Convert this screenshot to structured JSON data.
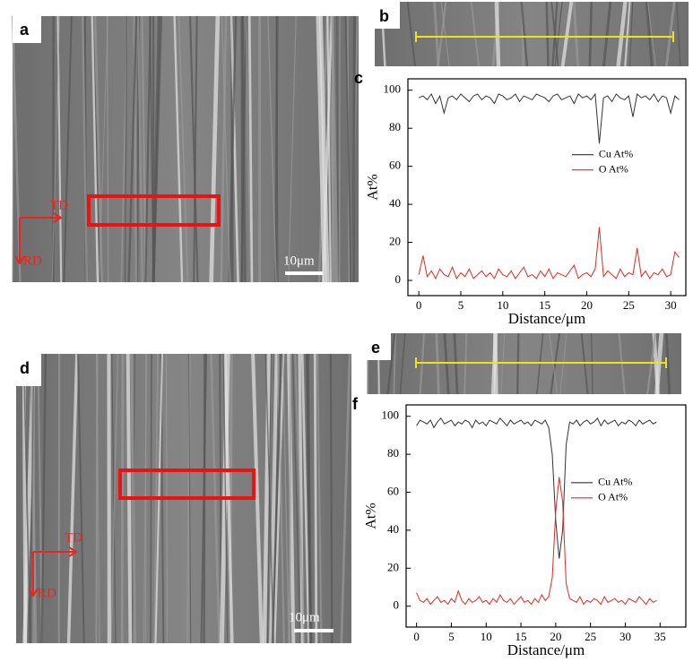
{
  "panels": {
    "a": {
      "label": "a",
      "td": "TD",
      "rd": "RD",
      "scale": "10μm"
    },
    "b": {
      "label": "b"
    },
    "d": {
      "label": "d",
      "td": "TD",
      "rd": "RD",
      "scale": "10μm"
    },
    "e": {
      "label": "e"
    }
  },
  "chart_data": [
    {
      "type": "line",
      "panel_label": "c",
      "xlabel": "Distance/μm",
      "ylabel": "At%",
      "legend": "center right",
      "xlim": [
        -1.3,
        31.8
      ],
      "ylim": [
        -8,
        106
      ],
      "xticks": [
        0,
        5,
        10,
        15,
        20,
        25,
        30
      ],
      "yticks": [
        0,
        20,
        40,
        60,
        80,
        100
      ],
      "x": [
        0,
        0.5,
        1,
        1.5,
        2,
        2.5,
        3,
        3.5,
        4,
        4.5,
        5,
        5.5,
        6,
        6.5,
        7,
        7.5,
        8,
        8.5,
        9,
        9.5,
        10,
        10.5,
        11,
        11.5,
        12,
        12.5,
        13,
        13.5,
        14,
        14.5,
        15,
        15.5,
        16,
        16.5,
        17,
        17.5,
        18,
        18.5,
        19,
        19.5,
        20,
        20.5,
        21,
        21.5,
        22,
        22.5,
        23,
        23.5,
        24,
        24.5,
        25,
        25.5,
        26,
        26.5,
        27,
        27.5,
        28,
        28.5,
        29,
        29.5,
        30,
        30.5,
        31
      ],
      "series": [
        {
          "name": "Cu At%",
          "color": "#333333",
          "values": [
            96,
            97,
            95,
            98,
            93,
            97,
            88,
            96,
            97,
            95,
            98,
            96,
            94,
            97,
            98,
            95,
            97,
            96,
            93,
            98,
            97,
            95,
            96,
            98,
            94,
            97,
            96,
            95,
            98,
            97,
            96,
            94,
            97,
            98,
            95,
            96,
            97,
            93,
            98,
            96,
            97,
            95,
            98,
            72,
            96,
            97,
            94,
            98,
            96,
            95,
            97,
            86,
            98,
            96,
            97,
            95,
            98,
            94,
            97,
            96,
            88,
            97,
            95
          ]
        },
        {
          "name": "O At%",
          "color": "#e8261e",
          "values": [
            3,
            13,
            2,
            5,
            1,
            6,
            3,
            2,
            7,
            1,
            4,
            2,
            6,
            1,
            3,
            5,
            2,
            4,
            1,
            6,
            3,
            2,
            5,
            1,
            4,
            7,
            2,
            3,
            1,
            5,
            2,
            6,
            1,
            4,
            3,
            2,
            5,
            8,
            1,
            3,
            4,
            2,
            6,
            28,
            2,
            5,
            3,
            1,
            6,
            2,
            4,
            3,
            17,
            2,
            5,
            1,
            4,
            3,
            6,
            2,
            3,
            15,
            12
          ]
        }
      ]
    },
    {
      "type": "line",
      "panel_label": "f",
      "xlabel": "Distance/μm",
      "ylabel": "At%",
      "legend": "center right",
      "xlim": [
        -1.5,
        38.7
      ],
      "ylim": [
        -11,
        106
      ],
      "xticks": [
        0,
        5,
        10,
        15,
        20,
        25,
        30,
        35
      ],
      "yticks": [
        0,
        20,
        40,
        60,
        80,
        100
      ],
      "x": [
        0,
        0.5,
        1,
        1.5,
        2,
        2.5,
        3,
        3.5,
        4,
        4.5,
        5,
        5.5,
        6,
        6.5,
        7,
        7.5,
        8,
        8.5,
        9,
        9.5,
        10,
        10.5,
        11,
        11.5,
        12,
        12.5,
        13,
        13.5,
        14,
        14.5,
        15,
        15.5,
        16,
        16.5,
        17,
        17.5,
        18,
        18.5,
        19,
        19.5,
        20,
        20.5,
        21,
        21.5,
        22,
        22.5,
        23,
        23.5,
        24,
        24.5,
        25,
        25.5,
        26,
        26.5,
        27,
        27.5,
        28,
        28.5,
        29,
        29.5,
        30,
        30.5,
        31,
        31.5,
        32,
        32.5,
        33,
        33.5,
        34,
        34.5
      ],
      "series": [
        {
          "name": "Cu At%",
          "color": "#333333",
          "values": [
            95,
            98,
            97,
            96,
            98,
            94,
            97,
            99,
            96,
            97,
            98,
            95,
            97,
            96,
            98,
            97,
            94,
            98,
            96,
            97,
            95,
            98,
            97,
            96,
            99,
            97,
            95,
            98,
            96,
            97,
            98,
            96,
            97,
            95,
            98,
            97,
            96,
            98,
            94,
            80,
            45,
            25,
            40,
            85,
            97,
            96,
            98,
            95,
            97,
            98,
            96,
            97,
            99,
            95,
            98,
            96,
            97,
            98,
            95,
            97,
            96,
            98,
            97,
            95,
            98,
            96,
            97,
            98,
            96,
            97
          ]
        },
        {
          "name": "O At%",
          "color": "#e8261e",
          "values": [
            7,
            3,
            2,
            4,
            1,
            3,
            5,
            2,
            3,
            1,
            4,
            2,
            8,
            3,
            1,
            4,
            2,
            3,
            5,
            2,
            3,
            1,
            4,
            2,
            6,
            3,
            2,
            4,
            1,
            3,
            5,
            2,
            3,
            1,
            4,
            2,
            6,
            3,
            5,
            15,
            50,
            68,
            55,
            12,
            4,
            3,
            2,
            5,
            1,
            3,
            2,
            4,
            3,
            1,
            5,
            2,
            3,
            4,
            2,
            3,
            1,
            4,
            3,
            2,
            5,
            3,
            1,
            4,
            2,
            3
          ]
        }
      ]
    }
  ]
}
